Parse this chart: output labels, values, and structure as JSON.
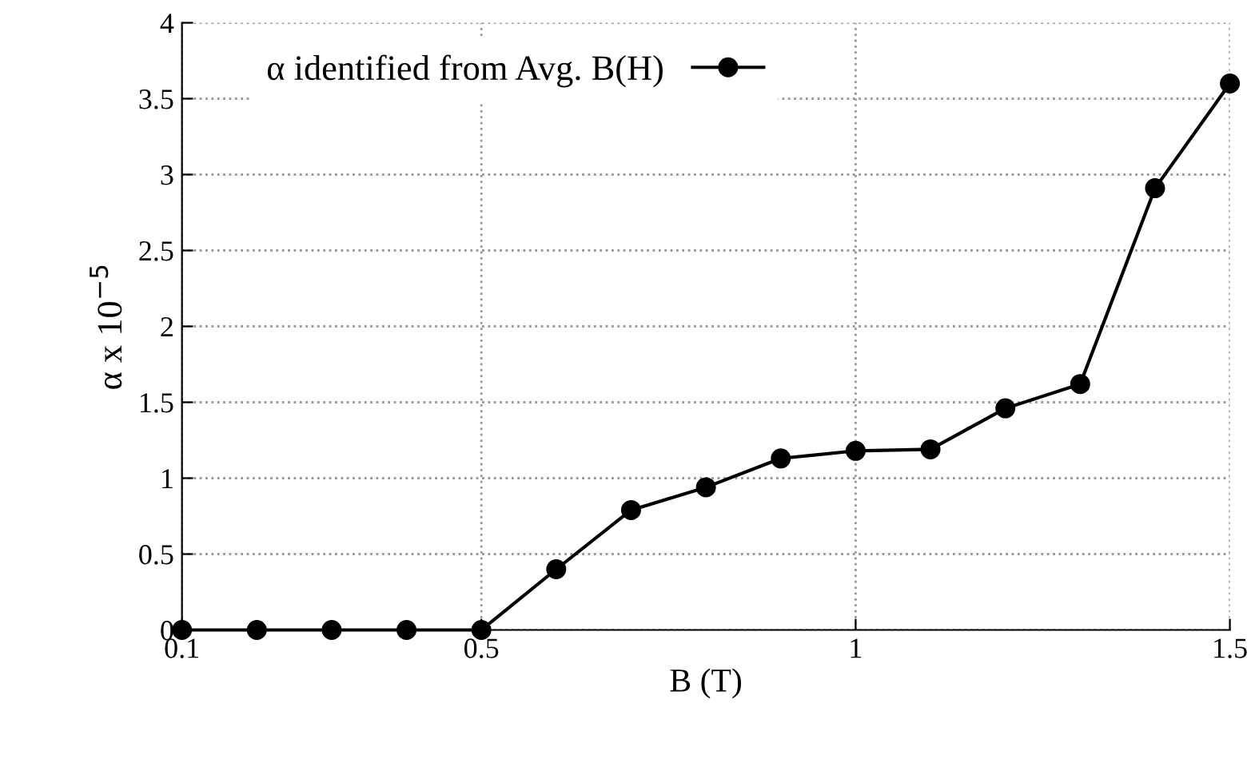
{
  "chart_data": {
    "type": "line",
    "xlabel": "B (T)",
    "ylabel": "α x 10$^{−5}$",
    "x": [
      0.1,
      0.2,
      0.3,
      0.4,
      0.5,
      0.6,
      0.7,
      0.8,
      0.9,
      1.0,
      1.1,
      1.2,
      1.3,
      1.4,
      1.5
    ],
    "series": [
      {
        "name": "α identified from Avg. B(H)",
        "color": "#000000",
        "values": [
          0,
          0,
          0,
          0,
          0,
          0.4,
          0.79,
          0.94,
          1.13,
          1.18,
          1.19,
          1.46,
          1.62,
          2.91,
          3.6
        ]
      }
    ],
    "xlim": [
      0.1,
      1.5
    ],
    "xticks": [
      0.1,
      0.5,
      1,
      1.5
    ],
    "ylim": [
      0,
      4
    ],
    "yticks": [
      0,
      0.5,
      1,
      1.5,
      2,
      2.5,
      3,
      3.5,
      4
    ],
    "grid": true,
    "legend": "top left",
    "marker": "circle",
    "line_style": "solid"
  }
}
